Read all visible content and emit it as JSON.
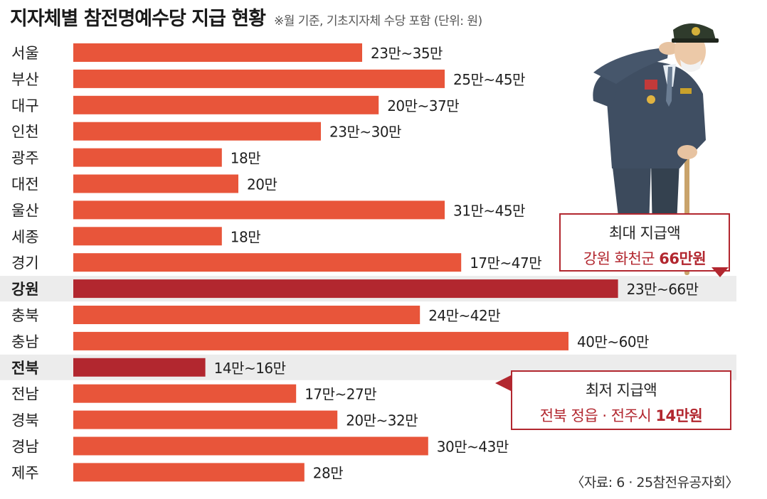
{
  "title": "지자체별 참전명예수당 지급 현황",
  "subtitle": "※월 기준, 기초지자체 수당 포함 (단위: 원)",
  "colors": {
    "bar": "#e8553a",
    "highlight_bar": "#b2272f",
    "highlight_row": "#ececec"
  },
  "chart_data": {
    "type": "bar",
    "orientation": "horizontal",
    "unit": "만원",
    "xlim": [
      0,
      70
    ],
    "categories": [
      "서울",
      "부산",
      "대구",
      "인천",
      "광주",
      "대전",
      "울산",
      "세종",
      "경기",
      "강원",
      "충북",
      "충남",
      "전북",
      "전남",
      "경북",
      "경남",
      "제주"
    ],
    "min_values": [
      23,
      25,
      20,
      23,
      18,
      20,
      31,
      18,
      17,
      23,
      24,
      40,
      14,
      17,
      20,
      30,
      28
    ],
    "max_values": [
      35,
      45,
      37,
      30,
      18,
      20,
      45,
      18,
      47,
      66,
      42,
      60,
      16,
      27,
      32,
      43,
      28
    ],
    "labels": [
      "23만~35만",
      "25만~45만",
      "20만~37만",
      "23만~30만",
      "18만",
      "20만",
      "31만~45만",
      "18만",
      "17만~47만",
      "23만~66만",
      "24만~42만",
      "40만~60만",
      "14만~16만",
      "17만~27만",
      "20만~32만",
      "30만~43만",
      "28만"
    ],
    "highlighted": [
      "강원",
      "전북"
    ],
    "grid": false
  },
  "callouts": {
    "max": {
      "heading": "최대 지급액",
      "region": "강원 화천군",
      "amount": "66만원"
    },
    "min": {
      "heading": "최저 지급액",
      "region": "전북 정읍 · 전주시",
      "amount": "14만원"
    }
  },
  "source": "〈자료: 6 · 25참전유공자회〉",
  "illustration": {
    "icon": "saluting-veteran-illustration"
  }
}
